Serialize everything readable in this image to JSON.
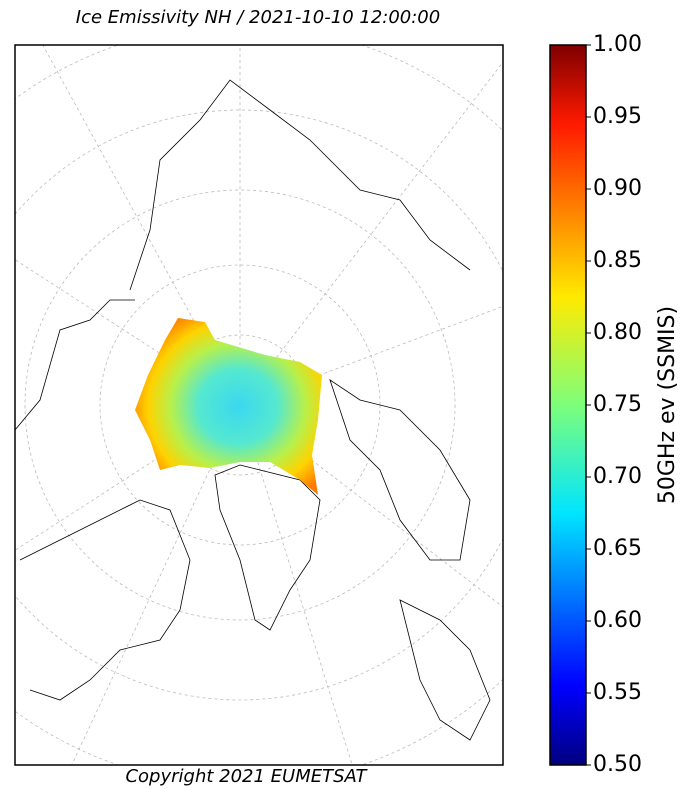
{
  "map": {
    "title": "Ice Emissivity NH / 2021-10-10 12:00:00",
    "copyright": "Copyright 2021 EUMETSAT",
    "colorbar": {
      "label": "50GHz ev (SSMIS)",
      "lim": [
        0.5,
        1.0
      ],
      "ticks": [
        {
          "value": 0.5,
          "label": "0.50"
        },
        {
          "value": 0.55,
          "label": "0.55"
        },
        {
          "value": 0.6,
          "label": "0.60"
        },
        {
          "value": 0.65,
          "label": "0.65"
        },
        {
          "value": 0.7,
          "label": "0.70"
        },
        {
          "value": 0.75,
          "label": "0.75"
        },
        {
          "value": 0.8,
          "label": "0.80"
        },
        {
          "value": 0.85,
          "label": "0.85"
        },
        {
          "value": 0.9,
          "label": "0.90"
        },
        {
          "value": 0.95,
          "label": "0.95"
        },
        {
          "value": 1.0,
          "label": "1.00"
        }
      ]
    }
  }
}
